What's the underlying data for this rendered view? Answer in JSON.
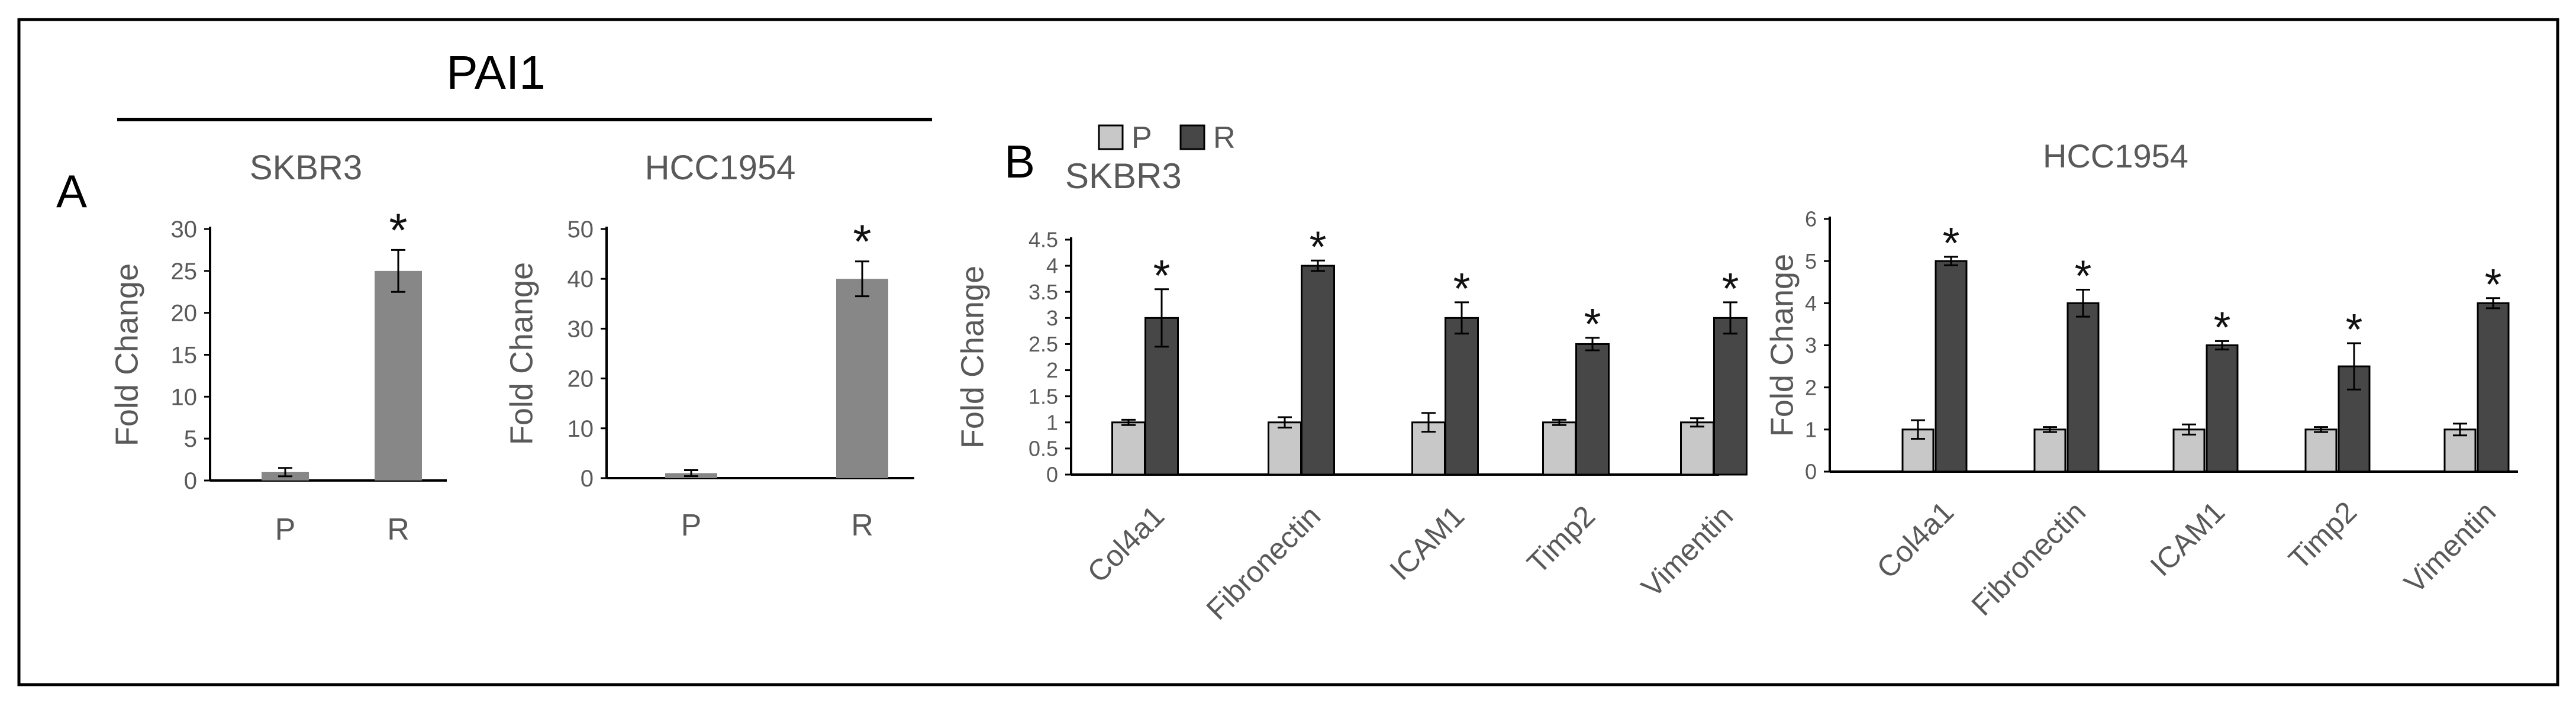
{
  "colors": {
    "parental": "#c8c8c8",
    "resistant": "#474747",
    "panelA_bar": "#878787",
    "axis": "#000000",
    "tick_text": "#595959",
    "title_text": "#595959",
    "asterisk": "#111111"
  },
  "panelA": {
    "label": "A",
    "group_title": "PAI1"
  },
  "panelB": {
    "label": "B",
    "legend": {
      "p": "P",
      "r": "R"
    }
  },
  "chart_data": [
    {
      "id": "a1",
      "type": "bar",
      "title": "SKBR3",
      "ylabel": "Fold Change",
      "xlabel": "",
      "categories": [
        "P",
        "R"
      ],
      "values": [
        1,
        25
      ],
      "errors": [
        0.5,
        2.5
      ],
      "significance": [
        "",
        "*"
      ],
      "ylim": [
        0,
        30
      ],
      "yticks": [
        0,
        5,
        10,
        15,
        20,
        25,
        30
      ],
      "ytick_labels": [
        "0",
        "5",
        "10",
        "15",
        "20",
        "25",
        "30"
      ]
    },
    {
      "id": "a2",
      "type": "bar",
      "title": "HCC1954",
      "ylabel": "Fold Change",
      "xlabel": "",
      "categories": [
        "P",
        "R"
      ],
      "values": [
        1,
        40
      ],
      "errors": [
        0.6,
        3.5
      ],
      "significance": [
        "",
        "*"
      ],
      "ylim": [
        0,
        50
      ],
      "yticks": [
        0,
        10,
        20,
        30,
        40,
        50
      ],
      "ytick_labels": [
        "0",
        "10",
        "20",
        "30",
        "40",
        "50"
      ]
    },
    {
      "id": "b1",
      "type": "bar",
      "title": "SKBR3",
      "ylabel": "Fold Change",
      "xlabel": "",
      "categories": [
        "Col4a1",
        "Fibronectin",
        "ICAM1",
        "Timp2",
        "Vimentin"
      ],
      "series": [
        {
          "name": "P",
          "values": [
            1,
            1,
            1,
            1,
            1
          ],
          "errors": [
            0.05,
            0.1,
            0.18,
            0.05,
            0.08
          ]
        },
        {
          "name": "R",
          "values": [
            3,
            4,
            3,
            2.5,
            3
          ],
          "errors": [
            0.55,
            0.1,
            0.3,
            0.12,
            0.3
          ]
        }
      ],
      "significance": [
        "*",
        "*",
        "*",
        "*",
        "*"
      ],
      "ylim": [
        0,
        4.5
      ],
      "yticks": [
        0,
        0.5,
        1,
        1.5,
        2,
        2.5,
        3,
        3.5,
        4,
        4.5
      ],
      "ytick_labels": [
        "0",
        "0.5",
        "1",
        "1.5",
        "2",
        "2.5",
        "3",
        "3.5",
        "4",
        "4.5"
      ]
    },
    {
      "id": "b2",
      "type": "bar",
      "title": "HCC1954",
      "ylabel": "Fold Change",
      "xlabel": "",
      "categories": [
        "Col4a1",
        "Fibronectin",
        "ICAM1",
        "Timp2",
        "Vimentin"
      ],
      "series": [
        {
          "name": "P",
          "values": [
            1,
            1,
            1,
            1,
            1
          ],
          "errors": [
            0.22,
            0.06,
            0.12,
            0.06,
            0.14
          ]
        },
        {
          "name": "R",
          "values": [
            5,
            4,
            3,
            2.5,
            4
          ],
          "errors": [
            0.1,
            0.32,
            0.1,
            0.55,
            0.12
          ]
        }
      ],
      "significance": [
        "*",
        "*",
        "*",
        "*",
        "*"
      ],
      "ylim": [
        0,
        6
      ],
      "yticks": [
        0,
        1,
        2,
        3,
        4,
        5,
        6
      ],
      "ytick_labels": [
        "0",
        "1",
        "2",
        "3",
        "4",
        "5",
        "6"
      ]
    }
  ]
}
